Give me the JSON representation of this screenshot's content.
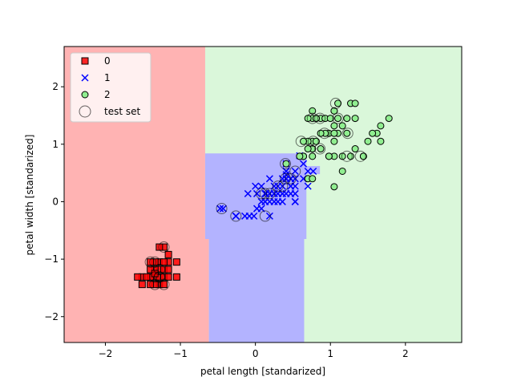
{
  "chart_data": {
    "type": "scatter",
    "title": "",
    "xlabel": "petal length [standarized]",
    "ylabel": "petal width [standarized]",
    "xlim": [
      -2.55,
      2.75
    ],
    "ylim": [
      -2.45,
      2.7
    ],
    "xticks": [
      -2,
      -1,
      0,
      1,
      2
    ],
    "yticks": [
      -2,
      -1,
      0,
      1,
      2
    ],
    "grid": false,
    "legend_position": "top-left",
    "decision_regions": {
      "colors": {
        "0": "#ffb3b3",
        "1": "#b3b3ff",
        "2": "#daf7da"
      },
      "description": "decision regions of a classifier over the feature space",
      "class0_region": [
        [
          -2.55,
          -2.45
        ],
        [
          -0.62,
          -2.45
        ],
        [
          -0.62,
          -0.65
        ],
        [
          -0.67,
          -0.65
        ],
        [
          -0.67,
          2.7
        ],
        [
          -2.55,
          2.7
        ]
      ],
      "class1_region": [
        [
          -0.62,
          -2.45
        ],
        [
          0.65,
          -2.45
        ],
        [
          0.65,
          -0.65
        ],
        [
          0.68,
          -0.65
        ],
        [
          0.68,
          0.48
        ],
        [
          0.86,
          0.48
        ],
        [
          0.86,
          0.62
        ],
        [
          0.68,
          0.62
        ],
        [
          0.68,
          0.84
        ],
        [
          -0.67,
          0.84
        ],
        [
          -0.67,
          -0.65
        ],
        [
          -0.62,
          -0.65
        ]
      ]
    },
    "series": [
      {
        "name": "0",
        "marker": "square",
        "color": "#ff0000",
        "points": [
          [
            -1.34,
            -1.31
          ],
          [
            -1.28,
            -1.31
          ],
          [
            -1.22,
            -1.31
          ],
          [
            -1.4,
            -1.31
          ],
          [
            -1.51,
            -1.31
          ],
          [
            -1.45,
            -1.31
          ],
          [
            -1.28,
            -1.18
          ],
          [
            -1.22,
            -1.18
          ],
          [
            -1.34,
            -1.18
          ],
          [
            -1.4,
            -1.18
          ],
          [
            -1.28,
            -1.44
          ],
          [
            -1.34,
            -1.44
          ],
          [
            -1.22,
            -1.44
          ],
          [
            -1.4,
            -1.44
          ],
          [
            -1.57,
            -1.31
          ],
          [
            -1.28,
            -1.05
          ],
          [
            -1.34,
            -1.05
          ],
          [
            -1.16,
            -1.05
          ],
          [
            -1.05,
            -1.05
          ],
          [
            -1.22,
            -1.05
          ],
          [
            -1.16,
            -1.31
          ],
          [
            -1.05,
            -1.31
          ],
          [
            -1.16,
            -1.18
          ],
          [
            -1.16,
            -0.92
          ],
          [
            -1.22,
            -0.79
          ],
          [
            -1.28,
            -0.79
          ],
          [
            -1.51,
            -1.44
          ],
          [
            -1.4,
            -1.05
          ],
          [
            -1.34,
            -1.25
          ]
        ]
      },
      {
        "name": "1",
        "marker": "x",
        "color": "#0000ff",
        "points": [
          [
            0.41,
            0.53
          ],
          [
            0.36,
            0.4
          ],
          [
            0.53,
            0.53
          ],
          [
            0.14,
            0.14
          ],
          [
            0.47,
            0.4
          ],
          [
            0.36,
            0.14
          ],
          [
            0.41,
            0.66
          ],
          [
            -0.26,
            -0.25
          ],
          [
            0.41,
            0.14
          ],
          [
            0.08,
            0.27
          ],
          [
            -0.14,
            -0.25
          ],
          [
            0.19,
            0.4
          ],
          [
            0.13,
            0.0
          ],
          [
            0.47,
            0.27
          ],
          [
            -0.08,
            -0.25
          ],
          [
            0.3,
            0.14
          ],
          [
            0.41,
            0.4
          ],
          [
            0.19,
            0.0
          ],
          [
            0.41,
            0.4
          ],
          [
            0.08,
            -0.12
          ],
          [
            0.59,
            0.8
          ],
          [
            0.13,
            0.14
          ],
          [
            0.64,
            0.4
          ],
          [
            0.53,
            0.0
          ],
          [
            0.25,
            0.14
          ],
          [
            0.3,
            0.27
          ],
          [
            0.53,
            0.27
          ],
          [
            0.64,
            0.66
          ],
          [
            0.41,
            0.4
          ],
          [
            -0.26,
            -0.25
          ],
          [
            0.02,
            -0.12
          ],
          [
            -0.02,
            -0.25
          ],
          [
            0.08,
            0.0
          ],
          [
            0.7,
            0.53
          ],
          [
            0.41,
            0.4
          ],
          [
            0.41,
            0.53
          ],
          [
            0.47,
            0.4
          ],
          [
            0.36,
            0.14
          ],
          [
            0.19,
            0.14
          ],
          [
            0.13,
            0.14
          ],
          [
            0.36,
            0.0
          ],
          [
            0.47,
            0.27
          ],
          [
            0.13,
            0.0
          ],
          [
            -0.26,
            -0.25
          ],
          [
            0.25,
            0.14
          ],
          [
            0.25,
            0.0
          ],
          [
            0.25,
            0.14
          ],
          [
            0.3,
            0.14
          ],
          [
            -0.43,
            -0.12
          ],
          [
            0.19,
            0.14
          ],
          [
            0.53,
            0.14
          ],
          [
            -0.1,
            0.14
          ],
          [
            0.36,
            0.27
          ],
          [
            0.0,
            0.27
          ],
          [
            0.47,
            0.14
          ],
          [
            0.53,
            0.4
          ],
          [
            0.3,
            0.0
          ],
          [
            0.02,
            0.14
          ],
          [
            0.53,
            0.0
          ],
          [
            0.7,
            0.27
          ],
          [
            0.77,
            0.53
          ],
          [
            0.19,
            -0.25
          ],
          [
            -0.47,
            -0.12
          ],
          [
            0.41,
            0.47
          ],
          [
            0.25,
            0.27
          ]
        ]
      },
      {
        "name": "2",
        "marker": "circle",
        "color": "#90ee90",
        "points": [
          [
            1.27,
            1.71
          ],
          [
            0.76,
            0.92
          ],
          [
            1.22,
            1.19
          ],
          [
            1.05,
            0.79
          ],
          [
            1.16,
            1.32
          ],
          [
            1.62,
            1.19
          ],
          [
            0.41,
            0.66
          ],
          [
            1.44,
            0.79
          ],
          [
            1.16,
            0.79
          ],
          [
            1.33,
            1.71
          ],
          [
            0.76,
            1.05
          ],
          [
            0.87,
            0.92
          ],
          [
            0.98,
            1.19
          ],
          [
            0.7,
            1.05
          ],
          [
            0.76,
            1.58
          ],
          [
            0.87,
            1.45
          ],
          [
            0.98,
            0.79
          ],
          [
            1.67,
            1.32
          ],
          [
            1.78,
            1.45
          ],
          [
            0.7,
            0.4
          ],
          [
            1.1,
            1.45
          ],
          [
            0.64,
            1.05
          ],
          [
            1.67,
            1.05
          ],
          [
            0.64,
            0.79
          ],
          [
            1.1,
            1.19
          ],
          [
            1.27,
            0.79
          ],
          [
            0.59,
            0.79
          ],
          [
            0.64,
            0.79
          ],
          [
            1.05,
            1.19
          ],
          [
            1.16,
            0.53
          ],
          [
            1.33,
            0.92
          ],
          [
            1.5,
            1.05
          ],
          [
            1.05,
            1.32
          ],
          [
            0.76,
            0.4
          ],
          [
            1.05,
            0.26
          ],
          [
            1.33,
            1.45
          ],
          [
            1.05,
            1.58
          ],
          [
            0.98,
            0.79
          ],
          [
            0.59,
            0.79
          ],
          [
            0.93,
            1.19
          ],
          [
            1.05,
            1.58
          ],
          [
            0.76,
            1.45
          ],
          [
            0.76,
            0.92
          ],
          [
            1.22,
            1.45
          ],
          [
            1.1,
            1.71
          ],
          [
            0.81,
            1.45
          ],
          [
            0.7,
            0.92
          ],
          [
            0.81,
            1.05
          ],
          [
            0.93,
            1.45
          ],
          [
            0.76,
            0.79
          ],
          [
            1.56,
            1.19
          ],
          [
            0.87,
            1.19
          ],
          [
            0.81,
            1.45
          ],
          [
            1.05,
            1.05
          ],
          [
            1.44,
            0.79
          ],
          [
            0.7,
            1.45
          ],
          [
            1.0,
            1.45
          ]
        ]
      }
    ],
    "test_set": {
      "name": "test set",
      "marker": "open-circle",
      "color": "#000000",
      "points": [
        [
          1.07,
          1.71
        ],
        [
          0.4,
          0.66
        ],
        [
          0.61,
          1.05
        ],
        [
          0.86,
          1.45
        ],
        [
          1.23,
          1.19
        ],
        [
          0.76,
          1.45
        ],
        [
          0.92,
          1.19
        ],
        [
          0.86,
          0.92
        ],
        [
          1.1,
          1.45
        ],
        [
          0.77,
          1.05
        ],
        [
          1.22,
          0.79
        ],
        [
          1.4,
          0.79
        ],
        [
          0.4,
          0.4
        ],
        [
          0.47,
          0.4
        ],
        [
          0.36,
          0.27
        ],
        [
          0.53,
          0.53
        ],
        [
          0.19,
          0.14
        ],
        [
          0.13,
          0.14
        ],
        [
          0.3,
          0.27
        ],
        [
          0.08,
          0.14
        ],
        [
          0.13,
          -0.25
        ],
        [
          -0.26,
          -0.25
        ],
        [
          -0.45,
          -0.12
        ],
        [
          -1.28,
          -1.31
        ],
        [
          -1.22,
          -0.79
        ],
        [
          -1.34,
          -1.05
        ],
        [
          -1.4,
          -1.05
        ],
        [
          -1.28,
          -1.18
        ],
        [
          -1.34,
          -1.44
        ],
        [
          -1.22,
          -1.44
        ],
        [
          -1.28,
          -1.31
        ],
        [
          -1.34,
          -1.31
        ]
      ]
    }
  }
}
